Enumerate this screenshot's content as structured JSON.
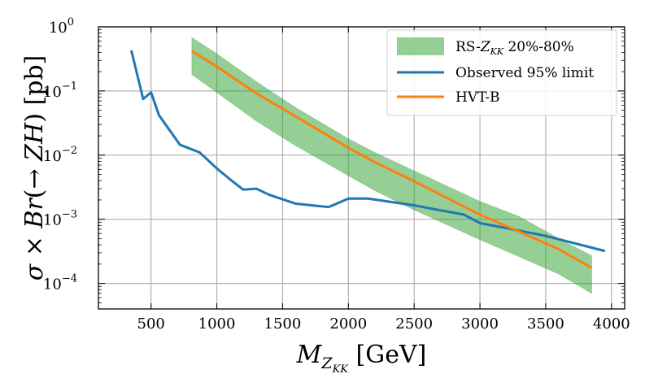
{
  "chart_data": {
    "type": "line",
    "title": "",
    "xlabel": "M_ZKK [GeV]",
    "ylabel": "σ × Br(→ ZH) [pb]",
    "xlabel_parts": {
      "main": "M",
      "sub": "Z",
      "subsub": "KK",
      "unit": " [GeV]"
    },
    "ylabel_parts": {
      "before": "σ × ",
      "br": "Br",
      "mid": "(→ ",
      "zh": "ZH",
      "after": ") [pb]"
    },
    "xlim": [
      100,
      4100
    ],
    "ylim": [
      4e-05,
      1
    ],
    "yscale": "log",
    "grid": true,
    "legend_position": "upper right",
    "x_ticks": [
      500,
      1000,
      1500,
      2000,
      2500,
      3000,
      3500,
      4000
    ],
    "x_tick_labels": [
      "500",
      "1000",
      "1500",
      "2000",
      "2500",
      "3000",
      "3500",
      "4000"
    ],
    "y_ticks": [
      {
        "value": 0.0001,
        "base": "10",
        "exp": "−4"
      },
      {
        "value": 0.001,
        "base": "10",
        "exp": "−3"
      },
      {
        "value": 0.01,
        "base": "10",
        "exp": "−2"
      },
      {
        "value": 0.1,
        "base": "10",
        "exp": "−1"
      },
      {
        "value": 1,
        "base": "10",
        "exp": "0"
      }
    ],
    "series": [
      {
        "name": "RS-Z_KK 20%-80%",
        "legend_parts": {
          "before": "RS-",
          "z": "Z",
          "sub": "KK",
          "after": " 20%-80%"
        },
        "kind": "band",
        "color": "#2ca02c",
        "x": [
          810,
          1000,
          1300,
          1600,
          2000,
          2200,
          2500,
          3000,
          3300,
          3600,
          3850
        ],
        "lower": [
          0.18,
          0.095,
          0.034,
          0.014,
          0.0048,
          0.0028,
          0.0014,
          0.00048,
          0.00026,
          0.00014,
          7e-05
        ],
        "upper": [
          0.68,
          0.38,
          0.14,
          0.055,
          0.018,
          0.011,
          0.0057,
          0.0019,
          0.0011,
          0.0005,
          0.00027
        ]
      },
      {
        "name": "Observed 95% limit",
        "kind": "line",
        "color": "#1f77b4",
        "x": [
          350,
          440,
          500,
          560,
          720,
          870,
          1000,
          1100,
          1200,
          1300,
          1400,
          1600,
          1850,
          2000,
          2150,
          2500,
          2700,
          2880,
          3000,
          3200,
          3500,
          3950
        ],
        "y": [
          0.43,
          0.075,
          0.095,
          0.042,
          0.0145,
          0.011,
          0.0062,
          0.0042,
          0.0029,
          0.003,
          0.0024,
          0.00175,
          0.00155,
          0.0021,
          0.0021,
          0.00165,
          0.00138,
          0.00118,
          0.00087,
          0.00073,
          0.00055,
          0.00032
        ]
      },
      {
        "name": "HVT-B",
        "kind": "line",
        "color": "#ff7f0e",
        "x": [
          810,
          1000,
          1300,
          1600,
          2000,
          2200,
          2500,
          3000,
          3300,
          3600,
          3850
        ],
        "y": [
          0.42,
          0.24,
          0.092,
          0.04,
          0.013,
          0.0078,
          0.0039,
          0.00118,
          0.00064,
          0.00034,
          0.000175
        ]
      }
    ]
  }
}
